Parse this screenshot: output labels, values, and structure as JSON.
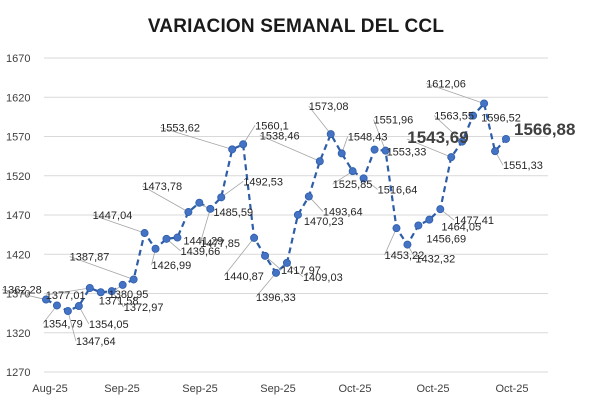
{
  "chart_data": {
    "type": "line",
    "title": "VARIACION SEMANAL DEL CCL",
    "xlabel": "",
    "ylabel": "",
    "ylim": [
      1270,
      1670
    ],
    "yticks": [
      1270,
      1320,
      1370,
      1420,
      1470,
      1520,
      1570,
      1620,
      1670
    ],
    "xtick_labels": [
      "Aug-25",
      "Sep-25",
      "Sep-25",
      "Sep-25",
      "Oct-25",
      "Oct-25",
      "Oct-25"
    ],
    "grid": "horizontal",
    "line_color": "#2E5EA8",
    "marker_color": "#4472C4",
    "line_style": "dashed",
    "series": [
      {
        "values": [
          1362.28,
          1354.79,
          1347.64,
          1354.05,
          1377.01,
          1371.58,
          1372.97,
          1380.95,
          1387.87,
          1447.04,
          1426.99,
          1439.66,
          1441.29,
          1473.78,
          1485.59,
          1477.85,
          1492.53,
          1553.62,
          1560.1,
          1440.87,
          1417.97,
          1396.33,
          1409.03,
          1470.23,
          1493.64,
          1538.46,
          1573.08,
          1548.43,
          1525.85,
          1516.64,
          1553.33,
          1551.96,
          1453.22,
          1432.32,
          1456.69,
          1464.05,
          1477.41,
          1543.69,
          1563.55,
          1596.52,
          1612.06,
          1551.33,
          1566.88
        ]
      }
    ],
    "data_labels": [
      "1362,28",
      "1354,79",
      "1347,64",
      "1354,05",
      "1377,01",
      "1371,58",
      "1372,97",
      "1380,95",
      "1387,87",
      "1447,04",
      "1426,99",
      "1439,66",
      "1441,29",
      "1473,78",
      "1485,59",
      "1477,85",
      "1492,53",
      "1553,62",
      "1560,1",
      "1440,87",
      "1417,97",
      "1396,33",
      "1409,03",
      "1470,23",
      "1493,64",
      "1538,46",
      "1573,08",
      "1548,43",
      "1525,85",
      "1516,64",
      "1553,33",
      "1551,96",
      "1453,22",
      "1432,32",
      "1456,69",
      "1464,05",
      "1477,41",
      "1543,69",
      "1563,55",
      "1596,52",
      "1612,06",
      "1551,33",
      "1566,88"
    ],
    "emphasized_labels": [
      "1543,69",
      "1566,88"
    ]
  }
}
